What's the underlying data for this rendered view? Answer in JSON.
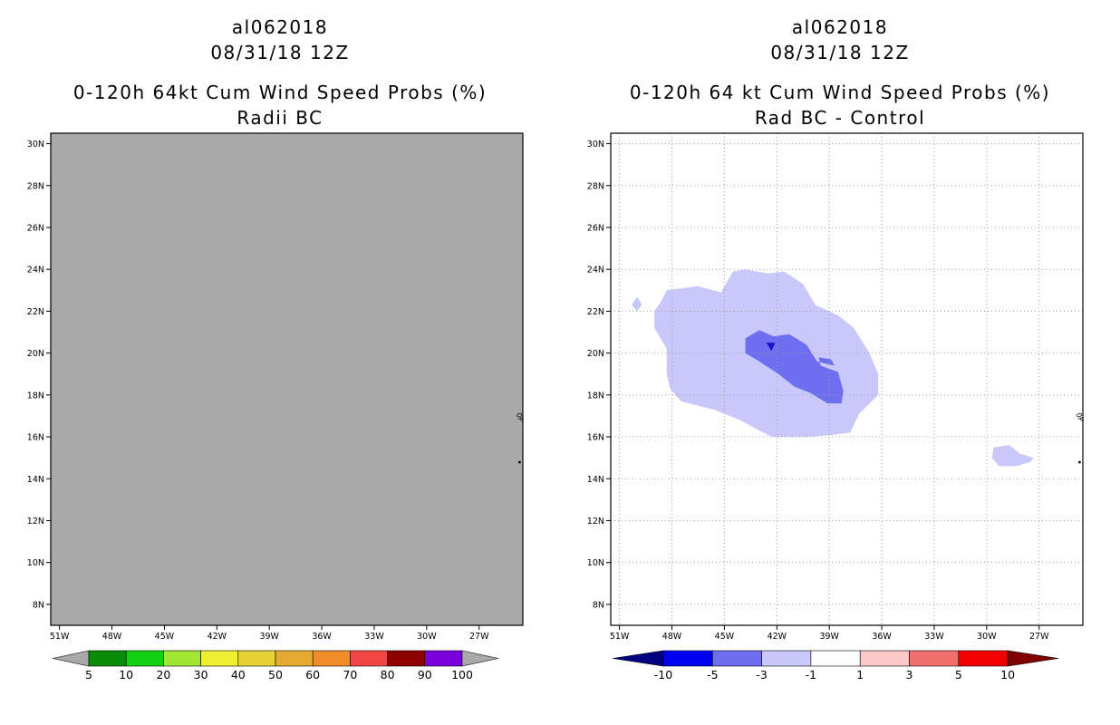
{
  "colors": {
    "background": "#ffffff",
    "missing_fill": "#a9a9a9",
    "gridline": "#a0a0a0",
    "frame": "#000000"
  },
  "chart_data": [
    {
      "type": "heatmap",
      "title_lines": [
        "al062018",
        "08/31/18 12Z",
        "0-120h 64kt Cum Wind Speed Probs (%)",
        "Radii BC"
      ],
      "x_ticks": [
        "51W",
        "48W",
        "45W",
        "42W",
        "39W",
        "36W",
        "33W",
        "30W",
        "27W"
      ],
      "y_ticks": [
        "30N",
        "28N",
        "26N",
        "24N",
        "22N",
        "20N",
        "18N",
        "16N",
        "14N",
        "12N",
        "10N",
        "8N"
      ],
      "x_range_lon": [
        -51.5,
        -24.5
      ],
      "y_range_lat": [
        7.0,
        30.5
      ],
      "field": "uniform_gray_no_data",
      "grid": false,
      "colorbar": {
        "labels": [
          "5",
          "10",
          "20",
          "30",
          "40",
          "50",
          "60",
          "70",
          "80",
          "90",
          "100"
        ],
        "colors": [
          "#a9a9a9",
          "#0a8c0a",
          "#14d014",
          "#a0e632",
          "#f0f032",
          "#e6d232",
          "#e6aa32",
          "#f08c2a",
          "#f04646",
          "#8c0000",
          "#7a00dc",
          "#a9a9a9"
        ],
        "end_arrows": true
      },
      "annotations": [
        {
          "text": "0P",
          "lon": -24.8,
          "lat": 16.9
        },
        {
          "marker": "dot",
          "lon": -24.7,
          "lat": 14.8
        }
      ]
    },
    {
      "type": "heatmap",
      "title_lines": [
        "al062018",
        "08/31/18 12Z",
        "0-120h 64 kt Cum Wind Speed Probs (%)",
        "Rad BC - Control"
      ],
      "x_ticks": [
        "51W",
        "48W",
        "45W",
        "42W",
        "39W",
        "36W",
        "33W",
        "30W",
        "27W"
      ],
      "y_ticks": [
        "30N",
        "28N",
        "26N",
        "24N",
        "22N",
        "20N",
        "18N",
        "16N",
        "14N",
        "12N",
        "10N",
        "8N"
      ],
      "x_range_lon": [
        -51.5,
        -24.5
      ],
      "y_range_lat": [
        7.0,
        30.5
      ],
      "grid": true,
      "contour_regions": [
        {
          "level": "-3 to -1",
          "color": "#c8c8fa",
          "polygon_lonlat": [
            [
              -48.3,
              23.0
            ],
            [
              -46.5,
              23.2
            ],
            [
              -45.2,
              22.9
            ],
            [
              -44.5,
              23.9
            ],
            [
              -43.8,
              24.0
            ],
            [
              -42.5,
              23.8
            ],
            [
              -41.6,
              23.9
            ],
            [
              -40.5,
              23.3
            ],
            [
              -39.8,
              22.3
            ],
            [
              -38.5,
              21.8
            ],
            [
              -37.6,
              21.2
            ],
            [
              -36.7,
              20.0
            ],
            [
              -36.2,
              19.0
            ],
            [
              -36.2,
              18.0
            ],
            [
              -37.3,
              17.1
            ],
            [
              -37.8,
              16.2
            ],
            [
              -38.8,
              16.1
            ],
            [
              -40.2,
              16.0
            ],
            [
              -41.5,
              16.0
            ],
            [
              -42.3,
              16.0
            ],
            [
              -43.0,
              16.3
            ],
            [
              -44.1,
              16.8
            ],
            [
              -45.6,
              17.3
            ],
            [
              -47.5,
              17.7
            ],
            [
              -48.1,
              18.3
            ],
            [
              -48.3,
              19.0
            ],
            [
              -48.3,
              20.2
            ],
            [
              -49.0,
              21.2
            ],
            [
              -49.0,
              22.0
            ],
            [
              -48.6,
              22.5
            ]
          ]
        },
        {
          "level": "-3 to -1",
          "color": "#c8c8fa",
          "polygon_lonlat": [
            [
              -50.3,
              22.3
            ],
            [
              -50.0,
              22.7
            ],
            [
              -49.7,
              22.3
            ],
            [
              -50.0,
              22.0
            ]
          ]
        },
        {
          "level": "-3 to -1",
          "color": "#c8c8fa",
          "polygon_lonlat": [
            [
              -29.6,
              15.5
            ],
            [
              -28.7,
              15.6
            ],
            [
              -28.1,
              15.2
            ],
            [
              -27.3,
              15.0
            ],
            [
              -27.5,
              14.8
            ],
            [
              -28.3,
              14.6
            ],
            [
              -29.3,
              14.6
            ],
            [
              -29.7,
              15.0
            ]
          ]
        },
        {
          "level": "-5 to -3",
          "color": "#6e6ef0",
          "polygon_lonlat": [
            [
              -43.8,
              20.7
            ],
            [
              -43.0,
              21.1
            ],
            [
              -42.2,
              20.8
            ],
            [
              -41.3,
              20.9
            ],
            [
              -40.3,
              20.4
            ],
            [
              -39.7,
              19.6
            ],
            [
              -38.7,
              19.4
            ],
            [
              -38.9,
              19.7
            ],
            [
              -39.6,
              19.8
            ],
            [
              -39.5,
              19.4
            ],
            [
              -38.5,
              19.1
            ],
            [
              -38.2,
              18.2
            ],
            [
              -38.3,
              17.6
            ],
            [
              -39.1,
              17.6
            ],
            [
              -40.1,
              18.1
            ],
            [
              -41.0,
              18.4
            ],
            [
              -41.9,
              19.0
            ],
            [
              -43.0,
              19.6
            ],
            [
              -43.8,
              20.0
            ]
          ]
        },
        {
          "level": "-10 to -5",
          "color": "#1414c8",
          "polygon_lonlat": [
            [
              -42.6,
              20.5
            ],
            [
              -42.1,
              20.5
            ],
            [
              -42.3,
              20.1
            ]
          ]
        }
      ],
      "colorbar": {
        "labels": [
          "-10",
          "-5",
          "-3",
          "-1",
          "1",
          "3",
          "5",
          "10"
        ],
        "colors": [
          "#000080",
          "#0000f0",
          "#6e6ef0",
          "#c8c8fa",
          "#ffffff",
          "#fac8c8",
          "#f06e6e",
          "#f00000",
          "#800000"
        ],
        "end_arrows": true
      },
      "annotations": [
        {
          "text": "0P",
          "lon": -24.8,
          "lat": 16.9
        },
        {
          "marker": "dot",
          "lon": -24.7,
          "lat": 14.8
        }
      ]
    }
  ]
}
